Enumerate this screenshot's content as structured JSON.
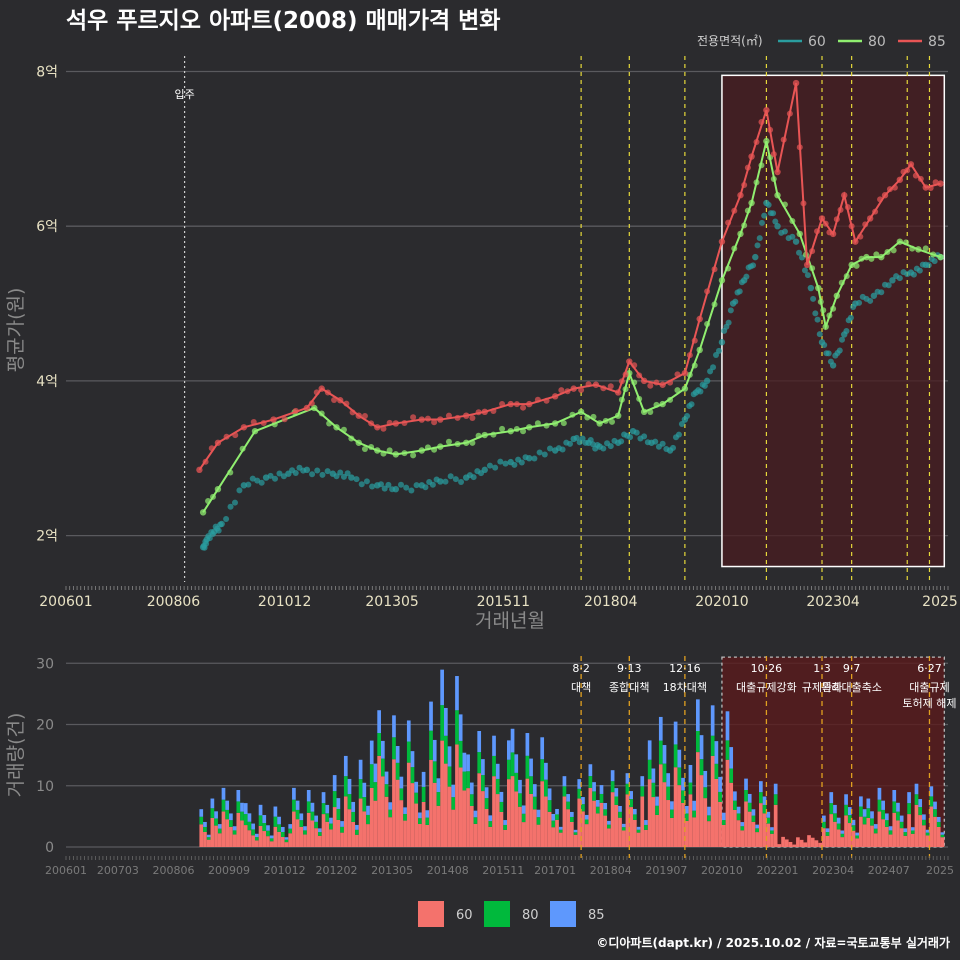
{
  "chart_data": [
    {
      "type": "line",
      "title": "석우 푸르지오 아파트(2008) 매매가격 변화",
      "xlabel": "거래년월",
      "ylabel": "평균가(원)",
      "x_ticks": [
        "200601",
        "200806",
        "201012",
        "201305",
        "201511",
        "201804",
        "202010",
        "202304",
        "2025"
      ],
      "y_ticks": [
        "2억",
        "4억",
        "6억",
        "8억"
      ],
      "ylim_eok": [
        1.4,
        8.2
      ],
      "grid": true,
      "legend_title": "전용면적(㎡)",
      "legend_position": "top-right",
      "annotation_move_in": "입주",
      "move_in_date": "2008-09",
      "policy_dates": [
        "2017-08",
        "2018-09",
        "2019-12",
        "2021-10",
        "2023-01",
        "2023-09",
        "2024-12",
        "2025-06"
      ],
      "highlight_range": [
        "2020-10",
        "2025-10"
      ],
      "series": [
        {
          "name": "60",
          "color": "#2a9d9f",
          "points": [
            [
              "2009-02",
              1.85
            ],
            [
              "2009-03",
              1.95
            ],
            [
              "2009-05",
              2.05
            ],
            [
              "2009-07",
              2.15
            ],
            [
              "2010-01",
              2.65
            ],
            [
              "2010-07",
              2.75
            ],
            [
              "2011-01",
              2.8
            ],
            [
              "2011-06",
              2.85
            ],
            [
              "2012-01",
              2.8
            ],
            [
              "2012-06",
              2.75
            ],
            [
              "2013-01",
              2.65
            ],
            [
              "2013-06",
              2.6
            ],
            [
              "2014-01",
              2.65
            ],
            [
              "2014-06",
              2.7
            ],
            [
              "2015-01",
              2.75
            ],
            [
              "2015-06",
              2.85
            ],
            [
              "2016-01",
              2.95
            ],
            [
              "2016-06",
              3.0
            ],
            [
              "2017-01",
              3.1
            ],
            [
              "2017-06",
              3.25
            ],
            [
              "2017-10",
              3.2
            ],
            [
              "2018-01",
              3.15
            ],
            [
              "2018-06",
              3.2
            ],
            [
              "2018-10",
              3.35
            ],
            [
              "2019-03",
              3.2
            ],
            [
              "2019-08",
              3.1
            ],
            [
              "2019-12",
              3.5
            ],
            [
              "2020-03",
              3.85
            ],
            [
              "2020-06",
              4.0
            ],
            [
              "2020-10",
              4.5
            ],
            [
              "2021-01",
              5.0
            ],
            [
              "2021-04",
              5.3
            ],
            [
              "2021-07",
              5.6
            ],
            [
              "2021-10",
              6.3
            ],
            [
              "2022-01",
              6.0
            ],
            [
              "2022-06",
              5.8
            ],
            [
              "2022-10",
              5.2
            ],
            [
              "2023-01",
              4.5
            ],
            [
              "2023-04",
              4.2
            ],
            [
              "2023-07",
              4.6
            ],
            [
              "2023-10",
              5.0
            ],
            [
              "2024-03",
              5.1
            ],
            [
              "2024-08",
              5.3
            ],
            [
              "2025-01",
              5.4
            ],
            [
              "2025-05",
              5.5
            ],
            [
              "2025-09",
              5.6
            ]
          ]
        },
        {
          "name": "80",
          "color": "#90ee70",
          "points": [
            [
              "2009-02",
              2.3
            ],
            [
              "2009-06",
              2.6
            ],
            [
              "2010-04",
              3.35
            ],
            [
              "2011-08",
              3.65
            ],
            [
              "2012-02",
              3.4
            ],
            [
              "2012-08",
              3.2
            ],
            [
              "2013-01",
              3.1
            ],
            [
              "2013-06",
              3.05
            ],
            [
              "2014-01",
              3.1
            ],
            [
              "2014-06",
              3.15
            ],
            [
              "2015-01",
              3.2
            ],
            [
              "2015-06",
              3.3
            ],
            [
              "2016-01",
              3.35
            ],
            [
              "2016-06",
              3.4
            ],
            [
              "2017-01",
              3.45
            ],
            [
              "2017-08",
              3.6
            ],
            [
              "2018-01",
              3.45
            ],
            [
              "2018-06",
              3.55
            ],
            [
              "2018-09",
              4.1
            ],
            [
              "2019-01",
              3.6
            ],
            [
              "2019-06",
              3.7
            ],
            [
              "2019-12",
              3.9
            ],
            [
              "2020-04",
              4.4
            ],
            [
              "2020-10",
              5.3
            ],
            [
              "2021-03",
              5.9
            ],
            [
              "2021-06",
              6.3
            ],
            [
              "2021-10",
              7.1
            ],
            [
              "2022-01",
              6.4
            ],
            [
              "2022-07",
              5.9
            ],
            [
              "2022-12",
              5.2
            ],
            [
              "2023-02",
              4.7
            ],
            [
              "2023-05",
              5.1
            ],
            [
              "2023-09",
              5.5
            ],
            [
              "2024-01",
              5.6
            ],
            [
              "2024-05",
              5.6
            ],
            [
              "2024-10",
              5.8
            ],
            [
              "2025-03",
              5.7
            ],
            [
              "2025-09",
              5.6
            ]
          ]
        },
        {
          "name": "85",
          "color": "#e85555",
          "points": [
            [
              "2009-01",
              2.85
            ],
            [
              "2009-06",
              3.2
            ],
            [
              "2010-01",
              3.4
            ],
            [
              "2010-09",
              3.5
            ],
            [
              "2011-06",
              3.65
            ],
            [
              "2011-10",
              3.9
            ],
            [
              "2012-03",
              3.75
            ],
            [
              "2012-08",
              3.55
            ],
            [
              "2013-01",
              3.4
            ],
            [
              "2013-06",
              3.45
            ],
            [
              "2014-01",
              3.5
            ],
            [
              "2014-06",
              3.5
            ],
            [
              "2015-01",
              3.55
            ],
            [
              "2015-06",
              3.6
            ],
            [
              "2016-01",
              3.7
            ],
            [
              "2016-06",
              3.7
            ],
            [
              "2017-01",
              3.8
            ],
            [
              "2017-06",
              3.9
            ],
            [
              "2017-12",
              3.95
            ],
            [
              "2018-06",
              3.85
            ],
            [
              "2018-09",
              4.25
            ],
            [
              "2019-01",
              4.0
            ],
            [
              "2019-06",
              3.95
            ],
            [
              "2019-12",
              4.1
            ],
            [
              "2020-04",
              4.8
            ],
            [
              "2020-10",
              5.8
            ],
            [
              "2021-03",
              6.4
            ],
            [
              "2021-06",
              6.9
            ],
            [
              "2021-10",
              7.5
            ],
            [
              "2022-01",
              6.7
            ],
            [
              "2022-06",
              7.85
            ],
            [
              "2022-09",
              5.5
            ],
            [
              "2023-01",
              6.1
            ],
            [
              "2023-04",
              5.9
            ],
            [
              "2023-07",
              6.4
            ],
            [
              "2023-10",
              5.8
            ],
            [
              "2024-02",
              6.1
            ],
            [
              "2024-06",
              6.4
            ],
            [
              "2024-10",
              6.6
            ],
            [
              "2025-01",
              6.8
            ],
            [
              "2025-05",
              6.5
            ],
            [
              "2025-09",
              6.55
            ]
          ]
        }
      ]
    },
    {
      "type": "bar",
      "stacked": true,
      "ylabel": "거래량(건)",
      "y_ticks": [
        "0",
        "10",
        "20",
        "30"
      ],
      "ylim": [
        0,
        32
      ],
      "x_ticks": [
        "200601",
        "200703",
        "200806",
        "200909",
        "201012",
        "201202",
        "201305",
        "201408",
        "201511",
        "201701",
        "201804",
        "201907",
        "202010",
        "202201",
        "202304",
        "202407",
        "2025"
      ],
      "highlight_range": [
        "2020-10",
        "2025-10"
      ],
      "policy_annotations": [
        {
          "date": "2017-08",
          "label": "8·2 대책"
        },
        {
          "date": "2018-09",
          "label": "9·13 종합대책"
        },
        {
          "date": "2019-12",
          "label": "12·16 18차대책"
        },
        {
          "date": "2021-10",
          "label": "10·26 대출규제강화"
        },
        {
          "date": "2023-01",
          "label": "1·3 규제완화"
        },
        {
          "date": "2023-09",
          "label": "9·7 특례대출축소"
        },
        {
          "date": "2025-06",
          "label": "6·27 대출규제 토허제 해제"
        }
      ],
      "legend_items": [
        "60",
        "80",
        "85"
      ],
      "legend_colors": [
        "#f4726c",
        "#00b93c",
        "#5e98fd"
      ],
      "legend_position": "bottom",
      "series": [
        {
          "name": "60",
          "color": "#f4726c",
          "values_by_year": {
            "2009": 3,
            "2010": 2,
            "2011": 3,
            "2012": 5,
            "2013": 8,
            "2014": 9,
            "2015": 7,
            "2016": 6,
            "2017": 5,
            "2018": 5,
            "2019": 7,
            "2020": 9,
            "2021": 4,
            "2022": 1,
            "2023": 3,
            "2024": 3,
            "2025": 4
          }
        },
        {
          "name": "80",
          "color": "#00b93c",
          "values_by_year": {
            "2009": 1,
            "2010": 1,
            "2011": 1,
            "2012": 2,
            "2013": 2,
            "2014": 3,
            "2015": 2,
            "2016": 2,
            "2017": 1,
            "2018": 1,
            "2019": 2,
            "2020": 2,
            "2021": 1,
            "2022": 0,
            "2023": 1,
            "2024": 1,
            "2025": 1
          }
        },
        {
          "name": "85",
          "color": "#5e98fd",
          "values_by_year": {
            "2009": 1,
            "2010": 1,
            "2011": 1,
            "2012": 2,
            "2013": 2,
            "2014": 3,
            "2015": 2,
            "2016": 2,
            "2017": 1,
            "2018": 1,
            "2019": 2,
            "2020": 3,
            "2021": 1,
            "2022": 0,
            "2023": 1,
            "2024": 1,
            "2025": 1
          }
        }
      ]
    }
  ],
  "caption": "©디아파트(dapt.kr) / 2025.10.02 / 자료=국토교통부 실거래가"
}
